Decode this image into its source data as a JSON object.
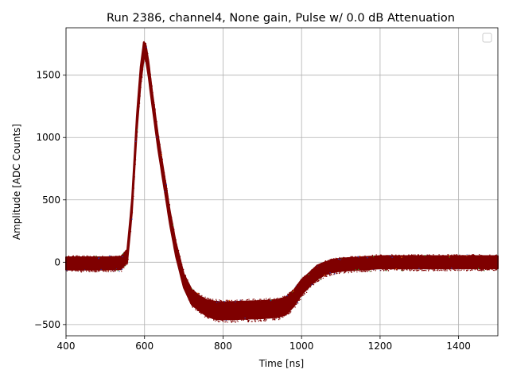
{
  "chart_data": {
    "type": "scatter",
    "title": "Run 2386, channel4, None gain, Pulse w/ 0.0 dB Attenuation",
    "xlabel": "Time [ns]",
    "ylabel": "Amplitude [ADC Counts]",
    "xlim": [
      400,
      1500
    ],
    "ylim": [
      -590,
      1880
    ],
    "xticks": [
      400,
      600,
      800,
      1000,
      1200,
      1400
    ],
    "yticks": [
      -500,
      0,
      500,
      1000,
      1500
    ],
    "xtick_labels": [
      "400",
      "600",
      "800",
      "1000",
      "1200",
      "1400"
    ],
    "ytick_labels": [
      "−500",
      "0",
      "500",
      "1000",
      "1500"
    ],
    "grid": true,
    "legend": {
      "placement": "top-right",
      "entries": []
    },
    "colors": {
      "points": "#7f0000",
      "speckle": [
        "#1f3fbf",
        "#2ca02c",
        "#ff7f0e"
      ],
      "grid": "#b0b0b0"
    },
    "series": [
      {
        "description_of_band": "overlaid waveform band",
        "x": [
          400,
          450,
          500,
          540,
          556,
          568,
          580,
          590,
          598,
          603,
          610,
          620,
          635,
          650,
          665,
          680,
          700,
          720,
          740,
          760,
          780,
          800,
          850,
          900,
          940,
          960,
          980,
          1000,
          1020,
          1040,
          1060,
          1080,
          1100,
          1150,
          1200,
          1250,
          1300,
          1350,
          1400,
          1450,
          1500
        ],
        "center": [
          -10,
          -10,
          -10,
          -5,
          50,
          450,
          1100,
          1500,
          1700,
          1690,
          1550,
          1300,
          950,
          650,
          350,
          100,
          -150,
          -280,
          -330,
          -370,
          -385,
          -390,
          -385,
          -380,
          -370,
          -350,
          -290,
          -200,
          -140,
          -80,
          -50,
          -30,
          -20,
          -10,
          0,
          0,
          0,
          0,
          0,
          0,
          0
        ],
        "half_width": [
          50,
          50,
          50,
          50,
          50,
          55,
          65,
          70,
          65,
          60,
          60,
          55,
          55,
          55,
          55,
          55,
          55,
          60,
          60,
          65,
          70,
          70,
          70,
          70,
          70,
          70,
          65,
          60,
          55,
          55,
          50,
          50,
          50,
          50,
          50,
          50,
          50,
          50,
          50,
          50,
          50
        ]
      }
    ]
  }
}
